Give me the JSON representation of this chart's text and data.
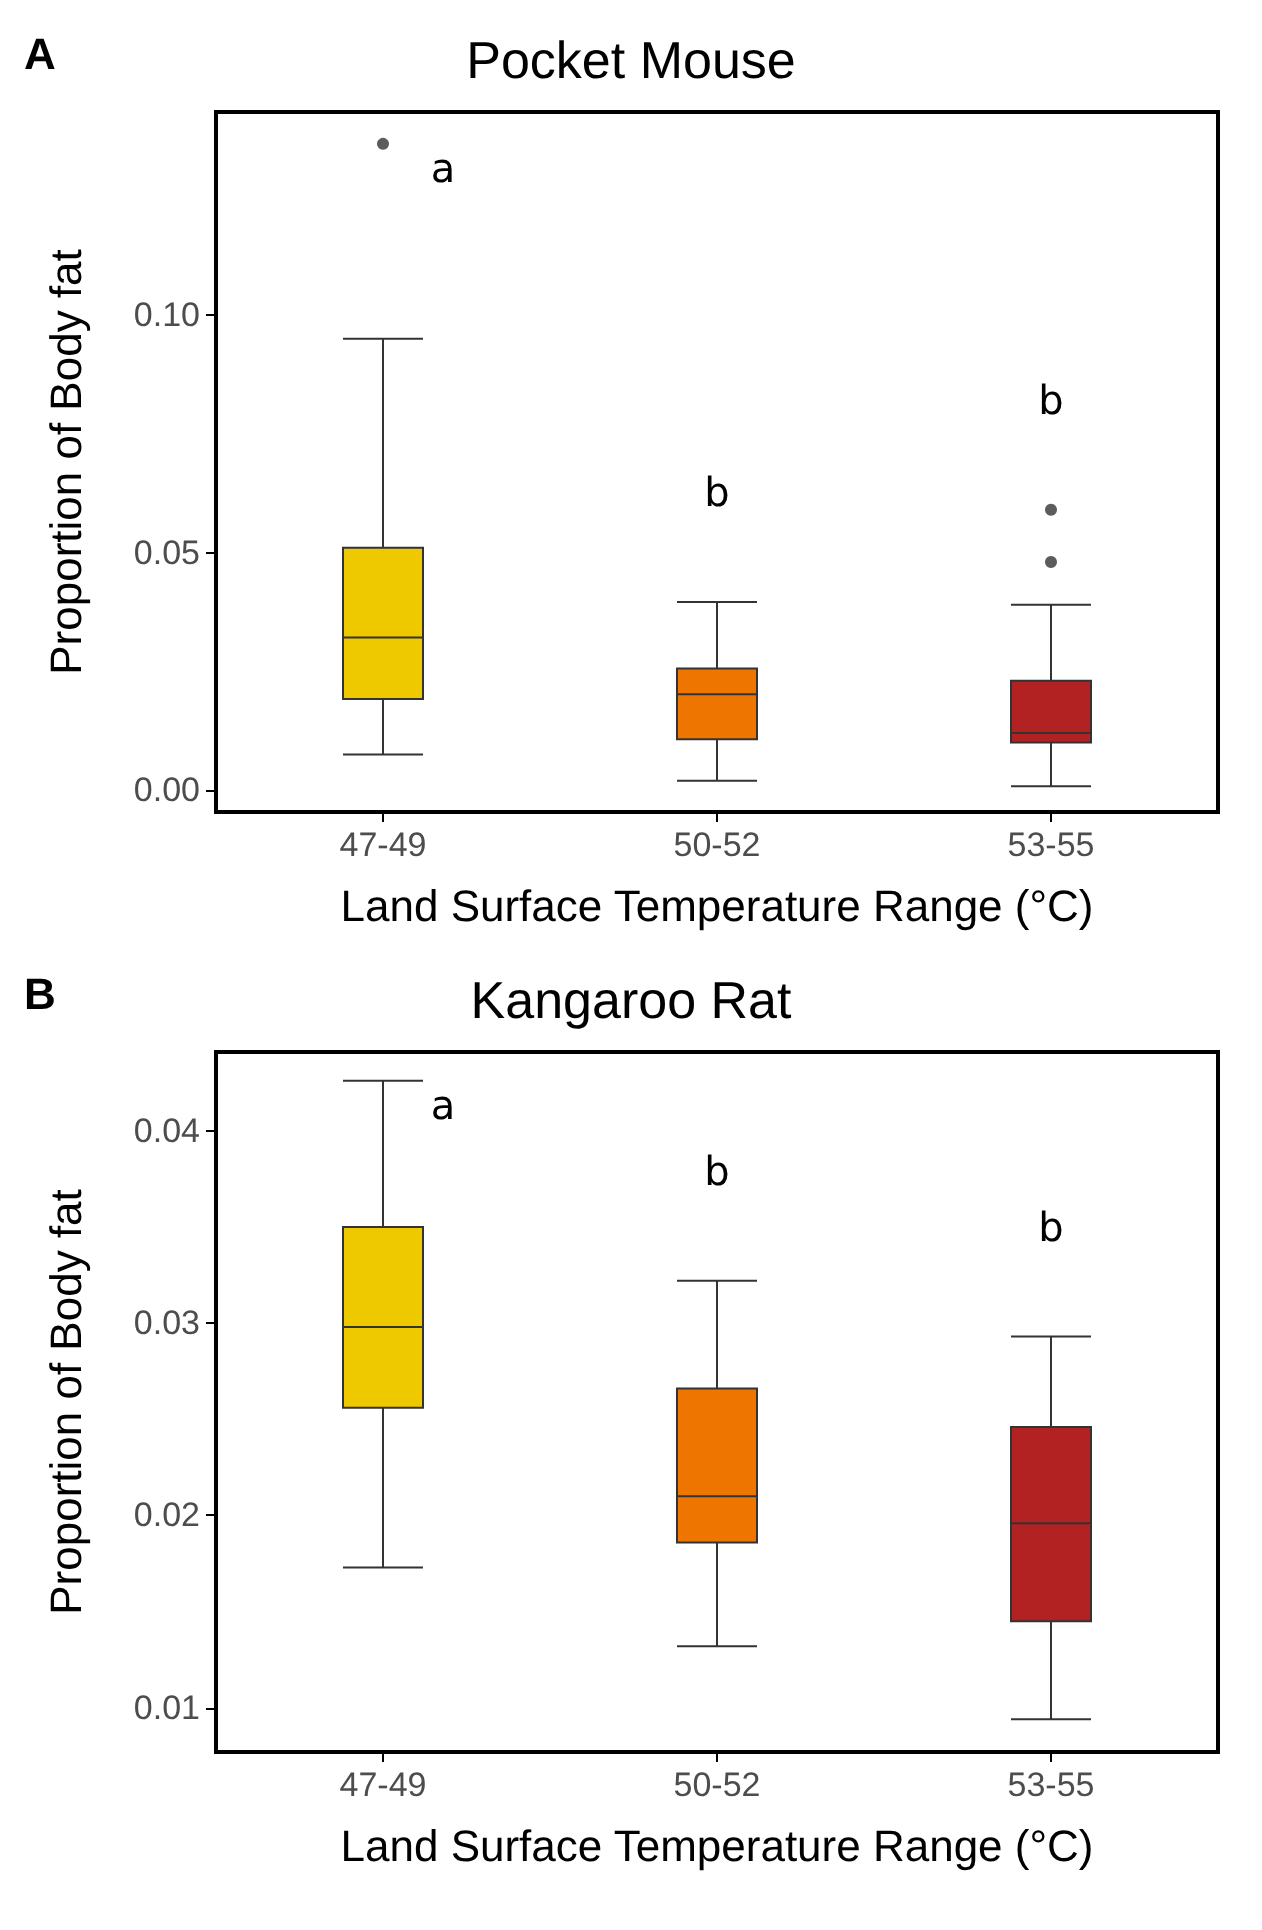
{
  "chart_data": [
    {
      "type": "box",
      "title": "Pocket Mouse",
      "xlabel": "Land Surface Temperature Range (°C)",
      "ylabel": "Proportion of Body fat",
      "categories": [
        "47-49",
        "50-52",
        "53-55"
      ],
      "colors": [
        "#eec900",
        "#ee7600",
        "#b22222"
      ],
      "boxes": [
        {
          "low": 0.0075,
          "q1": 0.0192,
          "median": 0.0321,
          "q3": 0.051,
          "high": 0.095,
          "outliers": [
            0.136
          ]
        },
        {
          "low": 0.002,
          "q1": 0.0107,
          "median": 0.0202,
          "q3": 0.0256,
          "high": 0.0396
        },
        {
          "low": 0.0008,
          "q1": 0.01,
          "median": 0.012,
          "q3": 0.023,
          "high": 0.039,
          "outliers": [
            0.048,
            0.059
          ]
        }
      ],
      "ylim": [
        -0.0046,
        0.1427
      ],
      "yticks": [
        {
          "value": 0,
          "label": "0.00"
        },
        {
          "value": 0.05,
          "label": "0.05"
        },
        {
          "value": 0.1,
          "label": "0.10"
        }
      ],
      "grid": false,
      "annotations": [
        "A",
        "a",
        "b",
        "b"
      ]
    },
    {
      "type": "box",
      "title": "Kangaroo Rat",
      "xlabel": "Land Surface Temperature Range (°C)",
      "ylabel": "Proportion of Body fat",
      "categories": [
        "47-49",
        "50-52",
        "53-55"
      ],
      "colors": [
        "#eec900",
        "#ee7600",
        "#b22222"
      ],
      "boxes": [
        {
          "low": 0.0173,
          "q1": 0.0256,
          "median": 0.0298,
          "q3": 0.035,
          "high": 0.0426
        },
        {
          "low": 0.0132,
          "q1": 0.0186,
          "median": 0.021,
          "q3": 0.0266,
          "high": 0.0322
        },
        {
          "low": 0.0094,
          "q1": 0.0145,
          "median": 0.0196,
          "q3": 0.0246,
          "high": 0.0293
        }
      ],
      "ylim": [
        0.0077,
        0.0441
      ],
      "yticks": [
        0.01,
        0.02,
        0.03,
        0.04
      ],
      "grid": false,
      "annotations": [
        "B",
        "a",
        "b",
        "b"
      ]
    }
  ]
}
